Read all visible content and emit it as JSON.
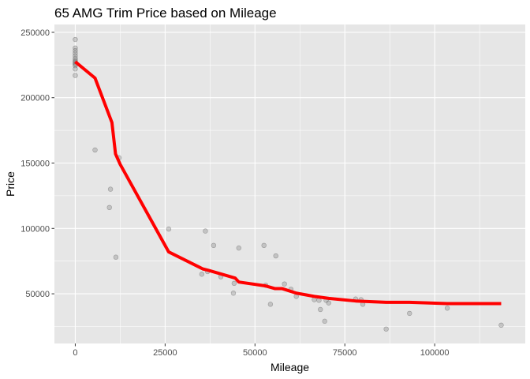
{
  "chart_data": {
    "type": "scatter",
    "title": "65 AMG Trim Price based on Mileage",
    "xlabel": "Mileage",
    "ylabel": "Price",
    "xlim": [
      -5800,
      125200
    ],
    "ylim": [
      12000,
      256000
    ],
    "x_ticks": [
      0,
      25000,
      50000,
      75000,
      100000
    ],
    "x_tick_labels": [
      "0",
      "25000",
      "50000",
      "75000",
      "100000"
    ],
    "y_ticks": [
      50000,
      100000,
      150000,
      200000,
      250000
    ],
    "y_tick_labels": [
      "50000",
      "100000",
      "150000",
      "200000",
      "250000"
    ],
    "grid": true,
    "panel_background": "#e6e6e6",
    "grid_color": "#ffffff",
    "legend": "none",
    "series": [
      {
        "type": "scatter",
        "color": "#808080",
        "points": [
          {
            "x": 0,
            "y": 244500
          },
          {
            "x": 0,
            "y": 238000
          },
          {
            "x": 0,
            "y": 236000
          },
          {
            "x": 0,
            "y": 234000
          },
          {
            "x": 0,
            "y": 232000
          },
          {
            "x": 0,
            "y": 230000
          },
          {
            "x": 0,
            "y": 228500
          },
          {
            "x": 0,
            "y": 227500
          },
          {
            "x": 0,
            "y": 226500
          },
          {
            "x": 0,
            "y": 225500
          },
          {
            "x": 0,
            "y": 224500
          },
          {
            "x": 0,
            "y": 222000
          },
          {
            "x": 0,
            "y": 217000
          },
          {
            "x": 5500,
            "y": 160000
          },
          {
            "x": 9800,
            "y": 130000
          },
          {
            "x": 9500,
            "y": 116000
          },
          {
            "x": 11300,
            "y": 78000
          },
          {
            "x": 12200,
            "y": 154000
          },
          {
            "x": 26000,
            "y": 99500
          },
          {
            "x": 35200,
            "y": 65000
          },
          {
            "x": 36200,
            "y": 98000
          },
          {
            "x": 36800,
            "y": 67000
          },
          {
            "x": 38500,
            "y": 87000
          },
          {
            "x": 40500,
            "y": 63000
          },
          {
            "x": 44000,
            "y": 50500
          },
          {
            "x": 44200,
            "y": 58000
          },
          {
            "x": 45500,
            "y": 85000
          },
          {
            "x": 52500,
            "y": 87000
          },
          {
            "x": 53000,
            "y": 56500
          },
          {
            "x": 54300,
            "y": 42000
          },
          {
            "x": 55800,
            "y": 79000
          },
          {
            "x": 58200,
            "y": 57500
          },
          {
            "x": 60000,
            "y": 53500
          },
          {
            "x": 61500,
            "y": 48000
          },
          {
            "x": 66500,
            "y": 45500
          },
          {
            "x": 67800,
            "y": 45000
          },
          {
            "x": 68200,
            "y": 38000
          },
          {
            "x": 69400,
            "y": 29000
          },
          {
            "x": 69800,
            "y": 45000
          },
          {
            "x": 70500,
            "y": 43000
          },
          {
            "x": 78000,
            "y": 46000
          },
          {
            "x": 79500,
            "y": 45500
          },
          {
            "x": 80000,
            "y": 42000
          },
          {
            "x": 86500,
            "y": 23000
          },
          {
            "x": 93000,
            "y": 35000
          },
          {
            "x": 103500,
            "y": 39000
          },
          {
            "x": 118500,
            "y": 26000
          }
        ]
      },
      {
        "type": "line",
        "color": "#ff0000",
        "points": [
          {
            "x": 0,
            "y": 227500
          },
          {
            "x": 5500,
            "y": 215000
          },
          {
            "x": 10200,
            "y": 181000
          },
          {
            "x": 11200,
            "y": 157000
          },
          {
            "x": 12500,
            "y": 149000
          },
          {
            "x": 26000,
            "y": 82000
          },
          {
            "x": 35500,
            "y": 69000
          },
          {
            "x": 37000,
            "y": 68000
          },
          {
            "x": 44500,
            "y": 62000
          },
          {
            "x": 45500,
            "y": 59000
          },
          {
            "x": 53000,
            "y": 56000
          },
          {
            "x": 55500,
            "y": 54000
          },
          {
            "x": 57500,
            "y": 54000
          },
          {
            "x": 61500,
            "y": 50500
          },
          {
            "x": 66500,
            "y": 48000
          },
          {
            "x": 70500,
            "y": 46500
          },
          {
            "x": 78000,
            "y": 44500
          },
          {
            "x": 86500,
            "y": 43500
          },
          {
            "x": 93000,
            "y": 43500
          },
          {
            "x": 103500,
            "y": 42500
          },
          {
            "x": 118500,
            "y": 42500
          }
        ]
      }
    ]
  }
}
